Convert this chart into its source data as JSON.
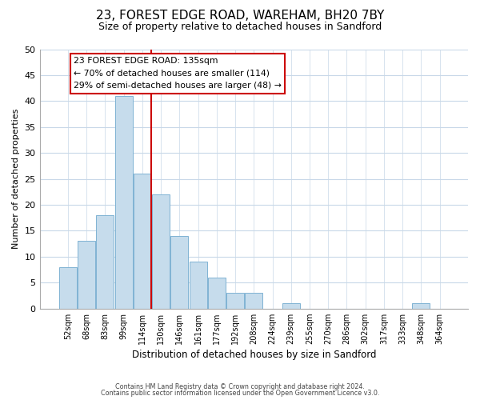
{
  "title": "23, FOREST EDGE ROAD, WAREHAM, BH20 7BY",
  "subtitle": "Size of property relative to detached houses in Sandford",
  "xlabel": "Distribution of detached houses by size in Sandford",
  "ylabel": "Number of detached properties",
  "bar_labels": [
    "52sqm",
    "68sqm",
    "83sqm",
    "99sqm",
    "114sqm",
    "130sqm",
    "146sqm",
    "161sqm",
    "177sqm",
    "192sqm",
    "208sqm",
    "224sqm",
    "239sqm",
    "255sqm",
    "270sqm",
    "286sqm",
    "302sqm",
    "317sqm",
    "333sqm",
    "348sqm",
    "364sqm"
  ],
  "bar_values": [
    8,
    13,
    18,
    41,
    26,
    22,
    14,
    9,
    6,
    3,
    3,
    0,
    1,
    0,
    0,
    0,
    0,
    0,
    0,
    1,
    0
  ],
  "bar_color": "#c6dcec",
  "bar_edge_color": "#7fb3d3",
  "vline_color": "#cc0000",
  "ylim": [
    0,
    50
  ],
  "yticks": [
    0,
    5,
    10,
    15,
    20,
    25,
    30,
    35,
    40,
    45,
    50
  ],
  "annotation_title": "23 FOREST EDGE ROAD: 135sqm",
  "annotation_line1": "← 70% of detached houses are smaller (114)",
  "annotation_line2": "29% of semi-detached houses are larger (48) →",
  "footer1": "Contains HM Land Registry data © Crown copyright and database right 2024.",
  "footer2": "Contains public sector information licensed under the Open Government Licence v3.0.",
  "background_color": "#ffffff",
  "grid_color": "#c8d8e8",
  "vline_bar_index": 5
}
